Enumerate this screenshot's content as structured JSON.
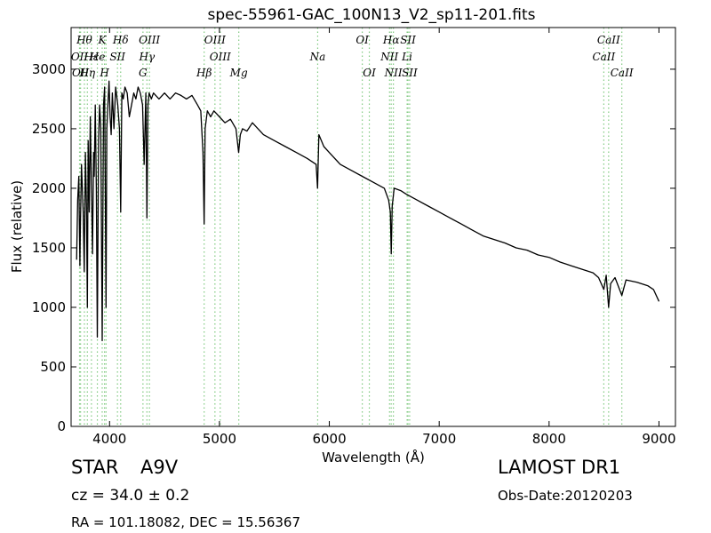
{
  "chart_data": {
    "type": "line",
    "title": "spec-55961-GAC_100N13_V2_sp11-201.fits",
    "xlabel": "Wavelength (Å)",
    "ylabel": "Flux (relative)",
    "xlim": [
      3650,
      9150
    ],
    "ylim": [
      0,
      3350
    ],
    "xticks": [
      4000,
      5000,
      6000,
      7000,
      8000,
      9000
    ],
    "yticks": [
      0,
      500,
      1000,
      1500,
      2000,
      2500,
      3000
    ],
    "grid": false,
    "series_color": "#000000",
    "line_marker_color": "#7fc97f",
    "series": [
      {
        "x": [
          3700,
          3710,
          3720,
          3730,
          3735,
          3745,
          3760,
          3770,
          3780,
          3790,
          3798,
          3805,
          3815,
          3825,
          3835,
          3845,
          3855,
          3860,
          3870,
          3880,
          3889,
          3900,
          3910,
          3920,
          3933,
          3945,
          3955,
          3968,
          3975,
          3985,
          3995,
          4005,
          4015,
          4025,
          4040,
          4055,
          4075,
          4090,
          4101,
          4112,
          4125,
          4140,
          4160,
          4180,
          4200,
          4220,
          4240,
          4260,
          4280,
          4300,
          4315,
          4330,
          4340,
          4350,
          4360,
          4380,
          4400,
          4450,
          4500,
          4550,
          4600,
          4650,
          4700,
          4750,
          4800,
          4830,
          4850,
          4861,
          4870,
          4890,
          4920,
          4950,
          5000,
          5050,
          5100,
          5150,
          5175,
          5190,
          5210,
          5250,
          5300,
          5400,
          5500,
          5600,
          5700,
          5800,
          5880,
          5893,
          5905,
          5950,
          6000,
          6100,
          6200,
          6300,
          6400,
          6500,
          6540,
          6555,
          6563,
          6572,
          6590,
          6650,
          6700,
          6800,
          6900,
          7000,
          7100,
          7200,
          7300,
          7400,
          7500,
          7600,
          7700,
          7800,
          7900,
          8000,
          8100,
          8200,
          8300,
          8400,
          8450,
          8498,
          8520,
          8542,
          8560,
          8600,
          8662,
          8700,
          8800,
          8900,
          8950,
          9000
        ],
        "y": [
          1400,
          1900,
          2100,
          1350,
          1700,
          2200,
          1800,
          1300,
          2300,
          1850,
          1000,
          2400,
          1800,
          2600,
          2000,
          1450,
          2300,
          2100,
          2700,
          2000,
          750,
          2400,
          2700,
          2500,
          720,
          2700,
          2850,
          1000,
          2500,
          2700,
          2900,
          2600,
          2450,
          2800,
          2500,
          2850,
          2700,
          2500,
          1800,
          2800,
          2750,
          2850,
          2800,
          2600,
          2700,
          2800,
          2750,
          2850,
          2800,
          2700,
          2200,
          2800,
          1750,
          2700,
          2800,
          2750,
          2800,
          2750,
          2800,
          2750,
          2800,
          2780,
          2750,
          2780,
          2700,
          2650,
          2300,
          1700,
          2500,
          2650,
          2600,
          2650,
          2600,
          2550,
          2580,
          2500,
          2300,
          2450,
          2500,
          2480,
          2550,
          2450,
          2400,
          2350,
          2300,
          2250,
          2200,
          2000,
          2450,
          2350,
          2300,
          2200,
          2150,
          2100,
          2050,
          2000,
          1900,
          1800,
          1450,
          1850,
          2000,
          1980,
          1950,
          1900,
          1850,
          1800,
          1750,
          1700,
          1650,
          1600,
          1570,
          1540,
          1500,
          1480,
          1440,
          1420,
          1380,
          1350,
          1320,
          1290,
          1250,
          1150,
          1270,
          1000,
          1200,
          1250,
          1100,
          1230,
          1210,
          1180,
          1150,
          1050
        ]
      }
    ],
    "lines": [
      {
        "wl": 3727,
        "label": "OII",
        "row": 2
      },
      {
        "wl": 3736,
        "label": "OII",
        "row": 3
      },
      {
        "wl": 3771,
        "label": "Hθ",
        "row": 1
      },
      {
        "wl": 3798,
        "label": "Hη",
        "row": 3
      },
      {
        "wl": 3835,
        "label": "Hε",
        "row": 2
      },
      {
        "wl": 3889,
        "label": "He",
        "row": 2
      },
      {
        "wl": 3933,
        "label": "K",
        "row": 1
      },
      {
        "wl": 3954,
        "label": "H",
        "row": 3
      },
      {
        "wl": 3968,
        "label": "",
        "row": 0
      },
      {
        "wl": 4072,
        "label": "SII",
        "row": 2
      },
      {
        "wl": 4101,
        "label": "Hδ",
        "row": 1
      },
      {
        "wl": 4304,
        "label": "G",
        "row": 3
      },
      {
        "wl": 4340,
        "label": "Hγ",
        "row": 2
      },
      {
        "wl": 4363,
        "label": "OIII",
        "row": 1
      },
      {
        "wl": 4861,
        "label": "Hβ",
        "row": 3
      },
      {
        "wl": 4959,
        "label": "OIII",
        "row": 1
      },
      {
        "wl": 5007,
        "label": "OIII",
        "row": 2
      },
      {
        "wl": 5176,
        "label": "Mg",
        "row": 3
      },
      {
        "wl": 5894,
        "label": "Na",
        "row": 2
      },
      {
        "wl": 6300,
        "label": "OI",
        "row": 1
      },
      {
        "wl": 6364,
        "label": "OI",
        "row": 3
      },
      {
        "wl": 6548,
        "label": "NII",
        "row": 2
      },
      {
        "wl": 6563,
        "label": "Hα",
        "row": 1
      },
      {
        "wl": 6583,
        "label": "NII",
        "row": 3
      },
      {
        "wl": 6716,
        "label": "SII",
        "row": 1
      },
      {
        "wl": 6731,
        "label": "SII",
        "row": 3
      },
      {
        "wl": 6708,
        "label": "Li",
        "row": 2
      },
      {
        "wl": 8498,
        "label": "CaII",
        "row": 2
      },
      {
        "wl": 8542,
        "label": "CaII",
        "row": 1
      },
      {
        "wl": 8662,
        "label": "CaII",
        "row": 3
      }
    ]
  },
  "info": {
    "object_class": "STAR",
    "subclass": "A9V",
    "release": "LAMOST DR1",
    "redshift_text": "cz = 34.0  ± 0.2",
    "obs_date": "Obs-Date:20120203",
    "coords": "RA = 101.18082, DEC = 15.56367"
  }
}
